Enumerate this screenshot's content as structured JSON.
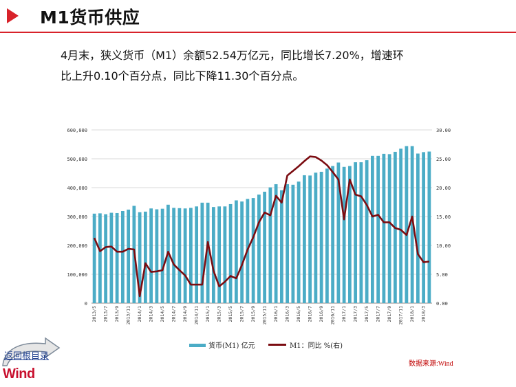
{
  "header": {
    "title": "M1货币供应"
  },
  "summary": {
    "line1": "4月末，狭义货币（M1）余额52.54万亿元，同比增长7.20%，增速环",
    "line2": "比上升0.10个百分点，同比下降11.30个百分点。"
  },
  "chart_data": {
    "type": "bar",
    "categories": [
      "2013/5",
      "2013/6",
      "2013/7",
      "2013/8",
      "2013/9",
      "2013/10",
      "2013/11",
      "2013/12",
      "2014/1",
      "2014/2",
      "2014/3",
      "2014/4",
      "2014/5",
      "2014/6",
      "2014/7",
      "2014/8",
      "2014/9",
      "2014/10",
      "2014/11",
      "2014/12",
      "2015/1",
      "2015/2",
      "2015/3",
      "2015/4",
      "2015/5",
      "2015/6",
      "2015/7",
      "2015/8",
      "2015/9",
      "2015/10",
      "2015/11",
      "2015/12",
      "2016/1",
      "2016/2",
      "2016/3",
      "2016/4",
      "2016/5",
      "2016/6",
      "2016/7",
      "2016/8",
      "2016/9",
      "2016/10",
      "2016/11",
      "2016/12",
      "2017/1",
      "2017/2",
      "2017/3",
      "2017/4",
      "2017/5",
      "2017/6",
      "2017/7",
      "2017/8",
      "2017/9",
      "2017/10",
      "2017/11",
      "2017/12",
      "2018/1",
      "2018/2",
      "2018/3",
      "2018/4"
    ],
    "x_tick_labels": [
      "2013/5",
      "2013/7",
      "2013/9",
      "2013/11",
      "2014/1",
      "2014/3",
      "2014/5",
      "2014/7",
      "2014/9",
      "2014/11",
      "2015/1",
      "2015/3",
      "2015/5",
      "2015/7",
      "2015/9",
      "2015/11",
      "2016/1",
      "2016/3",
      "2016/5",
      "2016/7",
      "2016/9",
      "2016/11",
      "2017/1",
      "2017/3",
      "2017/5",
      "2017/7",
      "2017/9",
      "2017/11",
      "2018/1",
      "2018/3"
    ],
    "series": [
      {
        "name": "货币(M1) 亿元",
        "type": "bar",
        "axis": "left",
        "color": "#4bacc6",
        "values": [
          310000,
          311000,
          308000,
          313000,
          312000,
          319000,
          324000,
          337000,
          315000,
          317000,
          328000,
          325000,
          327000,
          341000,
          330000,
          329000,
          328000,
          330000,
          335000,
          348000,
          348000,
          333000,
          335000,
          335000,
          343000,
          356000,
          352000,
          361000,
          364000,
          376000,
          386000,
          401000,
          412000,
          391000,
          412000,
          410000,
          421000,
          443000,
          442000,
          452000,
          455000,
          466000,
          475000,
          487000,
          472000,
          475000,
          488000,
          488000,
          495000,
          510000,
          510000,
          517000,
          516000,
          524000,
          535000,
          544000,
          544000,
          518000,
          523000,
          525000
        ]
      },
      {
        "name": "M1：同比 %(右)",
        "type": "line",
        "axis": "right",
        "color": "#7b0c11",
        "values": [
          11.3,
          9.0,
          9.7,
          9.8,
          8.9,
          8.9,
          9.4,
          9.3,
          1.2,
          6.9,
          5.4,
          5.5,
          5.7,
          8.9,
          6.7,
          5.7,
          4.8,
          3.2,
          3.2,
          3.2,
          10.6,
          5.6,
          2.9,
          3.7,
          4.7,
          4.3,
          6.6,
          9.3,
          11.4,
          14.0,
          15.7,
          15.2,
          18.6,
          17.4,
          22.1,
          22.9,
          23.7,
          24.6,
          25.4,
          25.3,
          24.7,
          23.9,
          22.7,
          21.4,
          14.5,
          21.4,
          18.8,
          18.5,
          17.0,
          15.0,
          15.3,
          14.0,
          14.0,
          13.0,
          12.7,
          11.8,
          15.0,
          8.5,
          7.1,
          7.2
        ]
      }
    ],
    "y_left_ticks": [
      "0",
      "100,000",
      "200,000",
      "300,000",
      "400,000",
      "500,000",
      "600,000"
    ],
    "y_right_ticks": [
      "0.00",
      "5.00",
      "10.00",
      "15.00",
      "20.00",
      "25.00",
      "30.00"
    ],
    "ylim_left": [
      0,
      600000
    ],
    "ylim_right": [
      0,
      30
    ],
    "grid": true,
    "legend_position": "bottom"
  },
  "legend": {
    "bar_label": "货币(M1) 亿元",
    "line_label": "M1：同比 %(右)"
  },
  "footer": {
    "source": "数据来源:Wind",
    "back_link": "返回根目录",
    "logo": "Wind"
  },
  "colors": {
    "accent": "#d8222a",
    "bar": "#4bacc6",
    "line": "#7b0c11",
    "source_text": "#c00000"
  }
}
